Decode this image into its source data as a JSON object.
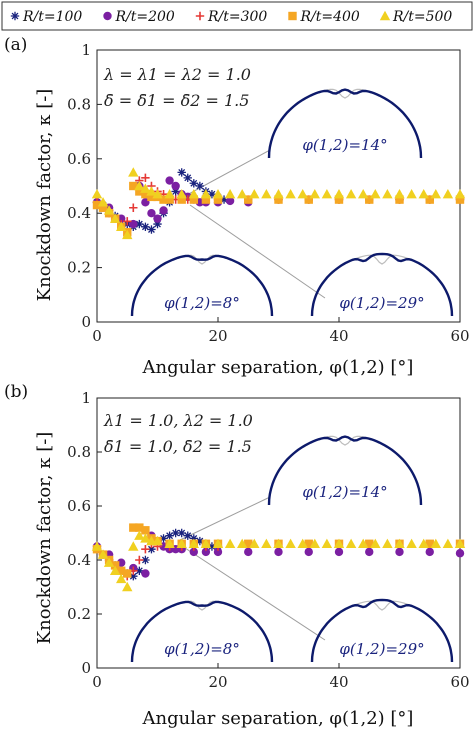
{
  "colors": {
    "r100": "#1a237e",
    "r200": "#7b1fa2",
    "r300": "#e53935",
    "r400": "#f5a623",
    "r500": "#f0d020",
    "shell": "#0d1a6b",
    "guide": "#9e9e9e"
  },
  "legend": {
    "entries": [
      {
        "label": "R/t=100",
        "marker": "star",
        "color": "#1a237e"
      },
      {
        "label": "R/t=200",
        "marker": "circle",
        "color": "#7b1fa2"
      },
      {
        "label": "R/t=300",
        "marker": "plus",
        "color": "#e53935"
      },
      {
        "label": "R/t=400",
        "marker": "square",
        "color": "#f5a623"
      },
      {
        "label": "R/t=500",
        "marker": "triangle",
        "color": "#f0d020"
      }
    ]
  },
  "chart_data": [
    {
      "type": "scatter",
      "panel_label": "(a)",
      "xlabel": "Angular separation, φ(1,2) [°]",
      "ylabel": "Knockdown factor, κ [-]",
      "xlim": [
        0,
        60
      ],
      "ylim": [
        0,
        1
      ],
      "xticks": [
        "0",
        "20",
        "40",
        "60"
      ],
      "yticks": [
        "0",
        "0.2",
        "0.4",
        "0.6",
        "0.8",
        "1"
      ],
      "annotation_lines": [
        "λ = λ1 = λ2 = 1.0",
        "δ̄ = δ̄1 = δ̄2 = 1.5"
      ],
      "insets": [
        {
          "label": "φ(1,2)=14°",
          "phi": 14
        },
        {
          "label": "φ(1,2)=8°",
          "phi": 8
        },
        {
          "label": "φ(1,2)=29°",
          "phi": 29
        }
      ],
      "series": [
        {
          "name": "R/t=100",
          "x": [
            0,
            1,
            2,
            3,
            4,
            5,
            6,
            7,
            8,
            9,
            10,
            11,
            12,
            13,
            14,
            15,
            16,
            17,
            18,
            19,
            20,
            21
          ],
          "y": [
            0.44,
            0.43,
            0.41,
            0.39,
            0.37,
            0.36,
            0.35,
            0.36,
            0.35,
            0.34,
            0.36,
            0.4,
            0.44,
            0.48,
            0.55,
            0.53,
            0.51,
            0.5,
            0.48,
            0.47,
            0.46,
            0.45
          ]
        },
        {
          "name": "R/t=200",
          "x": [
            0,
            2,
            4,
            6,
            7,
            8,
            9,
            10,
            11,
            12,
            13,
            14,
            15,
            16,
            17,
            18,
            20,
            22,
            25,
            30,
            35,
            40,
            45,
            50,
            55,
            60
          ],
          "y": [
            0.44,
            0.42,
            0.38,
            0.36,
            0.5,
            0.44,
            0.4,
            0.38,
            0.41,
            0.52,
            0.5,
            0.47,
            0.46,
            0.45,
            0.44,
            0.44,
            0.44,
            0.445,
            0.44,
            0.45,
            0.45,
            0.45,
            0.45,
            0.45,
            0.45,
            0.45
          ]
        },
        {
          "name": "R/t=300",
          "x": [
            0,
            1,
            2,
            3,
            4,
            5,
            6,
            7,
            8,
            9,
            10,
            11,
            12,
            13,
            15,
            20,
            25,
            30,
            35,
            40,
            45,
            50,
            55,
            60
          ],
          "y": [
            0.44,
            0.42,
            0.4,
            0.38,
            0.36,
            0.37,
            0.42,
            0.52,
            0.53,
            0.5,
            0.48,
            0.47,
            0.46,
            0.45,
            0.45,
            0.45,
            0.45,
            0.45,
            0.45,
            0.45,
            0.45,
            0.45,
            0.45,
            0.45
          ]
        },
        {
          "name": "R/t=400",
          "x": [
            0,
            1,
            2,
            3,
            4,
            5,
            6,
            7,
            8,
            9,
            10,
            11,
            12,
            14,
            16,
            18,
            20,
            25,
            30,
            35,
            40,
            45,
            50,
            55,
            60
          ],
          "y": [
            0.43,
            0.42,
            0.4,
            0.38,
            0.35,
            0.33,
            0.5,
            0.48,
            0.47,
            0.46,
            0.46,
            0.45,
            0.45,
            0.45,
            0.45,
            0.45,
            0.45,
            0.45,
            0.45,
            0.45,
            0.45,
            0.45,
            0.45,
            0.45,
            0.45
          ]
        },
        {
          "name": "R/t=500",
          "x": [
            0,
            1,
            2,
            3,
            4,
            5,
            6,
            7,
            8,
            9,
            10,
            12,
            14,
            16,
            18,
            20,
            22,
            24,
            26,
            28,
            30,
            32,
            34,
            36,
            38,
            40,
            42,
            44,
            46,
            48,
            50,
            52,
            54,
            56,
            58,
            60
          ],
          "y": [
            0.47,
            0.44,
            0.41,
            0.38,
            0.35,
            0.32,
            0.55,
            0.5,
            0.49,
            0.48,
            0.47,
            0.47,
            0.47,
            0.47,
            0.47,
            0.47,
            0.47,
            0.47,
            0.47,
            0.47,
            0.47,
            0.47,
            0.47,
            0.47,
            0.47,
            0.47,
            0.47,
            0.47,
            0.47,
            0.47,
            0.47,
            0.47,
            0.47,
            0.47,
            0.47,
            0.47
          ]
        }
      ]
    },
    {
      "type": "scatter",
      "panel_label": "(b)",
      "xlabel": "Angular separation, φ(1,2) [°]",
      "ylabel": "Knockdown factor, κ [-]",
      "xlim": [
        0,
        60
      ],
      "ylim": [
        0,
        1
      ],
      "xticks": [
        "0",
        "20",
        "40",
        "60"
      ],
      "yticks": [
        "0",
        "0.2",
        "0.4",
        "0.6",
        "0.8",
        "1"
      ],
      "annotation_lines": [
        "λ1 = 1.0, λ2 = 1.0",
        "δ̄1 = 1.0, δ̄2 = 1.5"
      ],
      "insets": [
        {
          "label": "φ(1,2)=14°",
          "phi": 14
        },
        {
          "label": "φ(1,2)=8°",
          "phi": 8
        },
        {
          "label": "φ(1,2)=29°",
          "phi": 29
        }
      ],
      "series": [
        {
          "name": "R/t=100",
          "x": [
            0,
            1,
            2,
            3,
            4,
            5,
            6,
            7,
            8,
            9,
            10,
            11,
            12,
            13,
            14,
            15,
            16,
            17,
            18,
            19,
            20
          ],
          "y": [
            0.44,
            0.42,
            0.4,
            0.38,
            0.36,
            0.35,
            0.34,
            0.36,
            0.4,
            0.44,
            0.47,
            0.48,
            0.49,
            0.5,
            0.5,
            0.49,
            0.48,
            0.47,
            0.46,
            0.45,
            0.45
          ]
        },
        {
          "name": "R/t=200",
          "x": [
            0,
            2,
            4,
            6,
            8,
            9,
            10,
            11,
            12,
            13,
            14,
            16,
            18,
            20,
            25,
            30,
            35,
            40,
            45,
            50,
            55,
            60
          ],
          "y": [
            0.45,
            0.42,
            0.39,
            0.37,
            0.35,
            0.49,
            0.47,
            0.45,
            0.44,
            0.44,
            0.44,
            0.43,
            0.43,
            0.43,
            0.43,
            0.43,
            0.43,
            0.43,
            0.43,
            0.43,
            0.43,
            0.425
          ]
        },
        {
          "name": "R/t=300",
          "x": [
            0,
            1,
            2,
            3,
            4,
            5,
            6,
            7,
            8,
            9,
            10,
            12,
            14,
            16,
            18,
            20
          ],
          "y": [
            0.44,
            0.42,
            0.4,
            0.37,
            0.35,
            0.34,
            0.36,
            0.4,
            0.44,
            0.46,
            0.45,
            0.45,
            0.45,
            0.45,
            0.45,
            0.45
          ]
        },
        {
          "name": "R/t=400",
          "x": [
            0,
            1,
            2,
            3,
            4,
            5,
            6,
            7,
            8,
            9,
            10,
            12,
            14,
            16,
            18,
            20,
            25,
            30,
            35,
            40,
            45,
            50,
            55,
            60
          ],
          "y": [
            0.44,
            0.42,
            0.4,
            0.38,
            0.36,
            0.35,
            0.52,
            0.52,
            0.51,
            0.48,
            0.47,
            0.46,
            0.46,
            0.46,
            0.46,
            0.46,
            0.46,
            0.46,
            0.46,
            0.46,
            0.46,
            0.46,
            0.46,
            0.46
          ]
        },
        {
          "name": "R/t=500",
          "x": [
            0,
            1,
            2,
            3,
            4,
            5,
            6,
            7,
            8,
            9,
            10,
            12,
            14,
            16,
            18,
            20,
            22,
            24,
            26,
            28,
            30,
            32,
            34,
            36,
            38,
            40,
            42,
            44,
            46,
            48,
            50,
            52,
            54,
            56,
            58,
            60
          ],
          "y": [
            0.45,
            0.42,
            0.39,
            0.36,
            0.33,
            0.3,
            0.45,
            0.49,
            0.48,
            0.47,
            0.47,
            0.46,
            0.46,
            0.46,
            0.46,
            0.46,
            0.46,
            0.46,
            0.46,
            0.46,
            0.46,
            0.46,
            0.46,
            0.46,
            0.46,
            0.46,
            0.46,
            0.46,
            0.46,
            0.46,
            0.46,
            0.46,
            0.46,
            0.46,
            0.46,
            0.46
          ]
        }
      ]
    }
  ]
}
